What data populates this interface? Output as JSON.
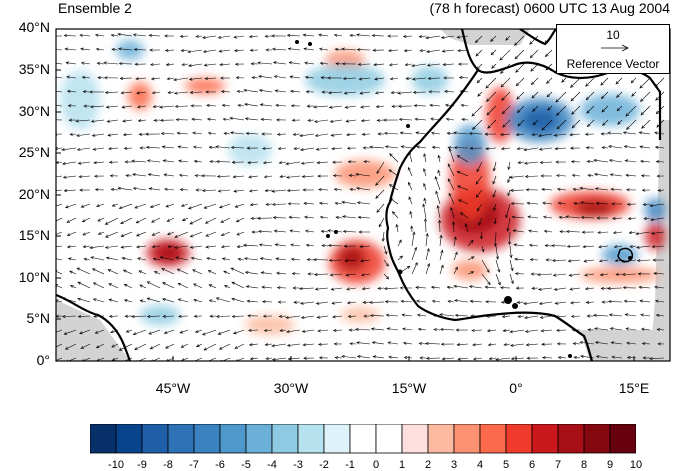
{
  "header": {
    "left_title": "Ensemble 2",
    "right_title": "(78 h forecast) 0600 UTC 13 Aug 2004"
  },
  "reference_vector": {
    "value": "10",
    "label": "Reference Vector"
  },
  "map": {
    "lat_labels": [
      "40°N",
      "35°N",
      "30°N",
      "25°N",
      "20°N",
      "15°N",
      "10°N",
      "5°N",
      "0°"
    ],
    "lon_labels": [
      "45°W",
      "30°W",
      "15°W",
      "0°",
      "15°E"
    ],
    "lat_range": [
      0,
      40
    ],
    "lon_range": [
      -59,
      19
    ]
  },
  "colorbar": {
    "labels": [
      "-10",
      "-9",
      "-8",
      "-7",
      "-6",
      "-5",
      "-4",
      "-3",
      "-2",
      "-1",
      "0",
      "1",
      "2",
      "3",
      "4",
      "5",
      "6",
      "7",
      "8",
      "9",
      "10"
    ],
    "colors": [
      "#08306b",
      "#08448c",
      "#1f5fa8",
      "#2c72b5",
      "#3b83c0",
      "#4e98cc",
      "#6bb0d8",
      "#8ecbe2",
      "#b6e1ee",
      "#def2fa",
      "#ffffff",
      "#ffffff",
      "#fde0dd",
      "#fcbba1",
      "#fc9272",
      "#fb6a4a",
      "#ef3b2c",
      "#cb181d",
      "#a50f15",
      "#850810",
      "#67000d"
    ]
  }
}
